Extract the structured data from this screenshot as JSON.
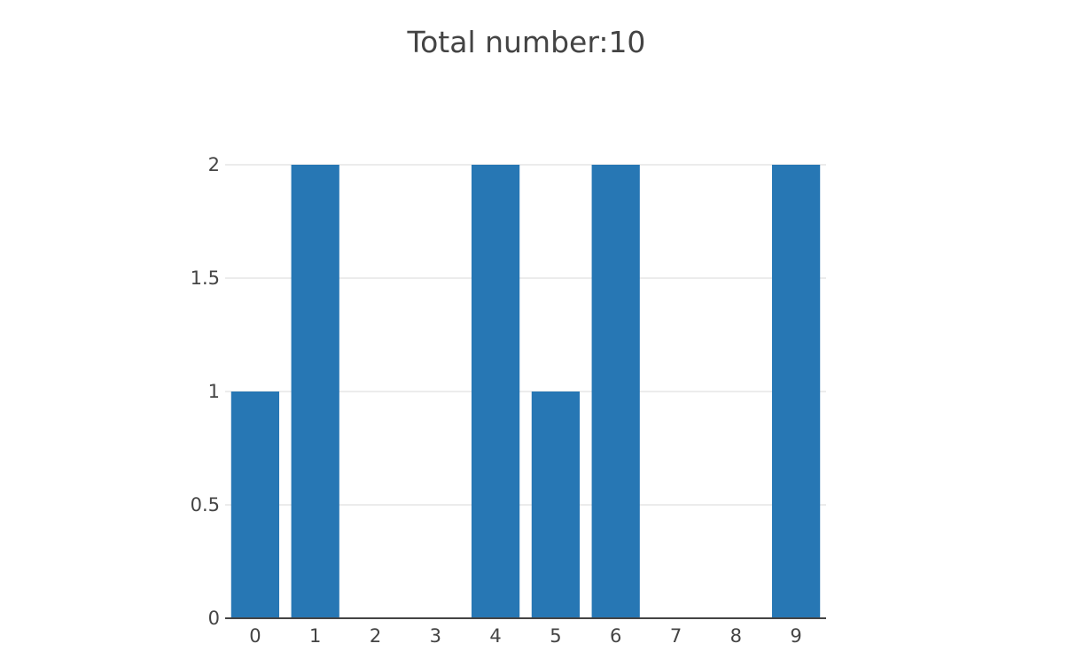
{
  "chart_data": {
    "type": "bar",
    "title": "Total number:10",
    "xlabel": "",
    "ylabel": "",
    "categories": [
      "0",
      "1",
      "2",
      "3",
      "4",
      "5",
      "6",
      "7",
      "8",
      "9"
    ],
    "values": [
      1,
      2,
      0,
      0,
      2,
      1,
      2,
      0,
      0,
      2
    ],
    "ylim": [
      0,
      2
    ],
    "yticks": [
      0,
      0.5,
      1,
      1.5,
      2
    ],
    "ytick_labels": [
      "0",
      "0.5",
      "1",
      "1.5",
      "2"
    ],
    "grid": true,
    "legend": "none",
    "bar_color": "#2777b4",
    "grid_color": "#e6e6e6",
    "text_color": "#444444"
  }
}
